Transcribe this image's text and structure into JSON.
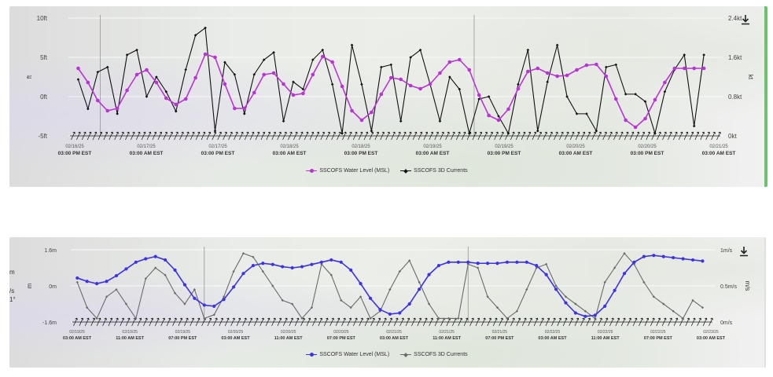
{
  "colors": {
    "level_top": "#b933d6",
    "level_bottom": "#3c32e6",
    "currents_top": "#111111",
    "currents_bottom": "#6a6a6a",
    "text": "#444444"
  },
  "icons": [
    "download-icon"
  ],
  "left_edge_text": [
    "m",
    "/s",
    "1°"
  ],
  "chart_data": [
    {
      "type": "line",
      "y_left_label": "ft",
      "y_right_label": "kt",
      "y_left_ticks": [
        "10ft",
        "5ft",
        "0ft",
        "-5ft"
      ],
      "y_right_ticks": [
        "2.4kt",
        "1.6kt",
        "0.8kt",
        "0kt"
      ],
      "ylim_left": [
        -5,
        10
      ],
      "ylim_right": [
        0,
        2.4
      ],
      "x_ticks": [
        {
          "date": "02/16/25",
          "time": "03:00 PM EST"
        },
        {
          "date": "02/17/25",
          "time": "03:00 AM EST"
        },
        {
          "date": "02/17/25",
          "time": "03:00 PM EST"
        },
        {
          "date": "02/18/25",
          "time": "03:00 AM EST"
        },
        {
          "date": "02/18/25",
          "time": "03:00 PM EST"
        },
        {
          "date": "02/19/25",
          "time": "03:00 AM EST"
        },
        {
          "date": "02/19/25",
          "time": "03:00 PM EST"
        },
        {
          "date": "02/20/25",
          "time": "03:00 AM EST"
        },
        {
          "date": "02/20/25",
          "time": "03:00 PM EST"
        },
        {
          "date": "02/21/25",
          "time": "03:00 AM EST"
        }
      ],
      "x_range_hours": [
        -2,
        132
      ],
      "grid_vertical_hours": [
        4.5,
        81
      ],
      "arrow_count": 120,
      "series": [
        {
          "name": "SSCOFS Water Level (MSL)",
          "y_axis": "left",
          "x_hours": [
            0,
            2,
            4,
            6,
            8,
            10,
            12,
            14,
            16,
            18,
            20,
            22,
            24,
            26,
            28,
            30,
            32,
            34,
            36,
            38,
            40,
            42,
            44,
            46,
            48,
            50,
            52,
            54,
            56,
            58,
            60,
            62,
            64,
            66,
            68,
            70,
            72,
            74,
            76,
            78,
            80,
            82,
            84,
            86,
            88,
            90,
            92,
            94,
            96,
            98,
            100,
            102,
            104,
            106,
            108,
            110,
            112,
            114,
            116,
            118,
            120,
            122,
            124,
            126,
            128
          ],
          "values": [
            3.6,
            1.8,
            -0.5,
            -1.8,
            -1.5,
            0.8,
            2.8,
            3.4,
            1.8,
            -0.2,
            -1.0,
            -0.3,
            2.4,
            5.4,
            5.0,
            1.6,
            -1.5,
            -1.5,
            0.5,
            2.8,
            3.0,
            1.6,
            0.2,
            0.4,
            2.8,
            5.1,
            4.4,
            1.3,
            -1.8,
            -3.0,
            -2.0,
            0.3,
            2.4,
            2.2,
            1.4,
            1.0,
            1.6,
            3.0,
            4.4,
            4.7,
            3.4,
            0.2,
            -2.4,
            -3.0,
            -1.6,
            1.0,
            3.2,
            3.6,
            3.0,
            2.6,
            2.7,
            3.4,
            4.0,
            4.1,
            2.6,
            -0.3,
            -3.0,
            -3.9,
            -2.8,
            -0.4,
            1.8,
            3.6,
            3.6,
            3.6,
            3.6
          ]
        },
        {
          "name": "SSCOFS 3D Currents",
          "y_axis": "right",
          "x_hours": [
            0,
            2,
            4,
            6,
            8,
            10,
            12,
            14,
            16,
            18,
            20,
            22,
            24,
            26,
            28,
            30,
            32,
            34,
            36,
            38,
            40,
            42,
            44,
            46,
            48,
            50,
            52,
            54,
            56,
            58,
            60,
            62,
            64,
            66,
            68,
            70,
            72,
            74,
            76,
            78,
            80,
            82,
            84,
            86,
            88,
            90,
            92,
            94,
            96,
            98,
            100,
            102,
            104,
            106,
            108,
            110,
            112,
            114,
            116,
            118,
            120,
            122,
            124,
            126,
            128
          ],
          "values": [
            1.15,
            0.55,
            1.3,
            1.4,
            0.45,
            1.65,
            1.75,
            0.8,
            1.2,
            0.9,
            0.5,
            1.35,
            2.05,
            2.2,
            0.1,
            1.5,
            1.25,
            0.45,
            1.25,
            1.55,
            1.7,
            0.3,
            1.1,
            0.95,
            1.55,
            1.75,
            1.05,
            0.05,
            1.85,
            1.05,
            0.1,
            1.4,
            1.45,
            0.3,
            1.6,
            1.75,
            1.05,
            0.3,
            1.2,
            0.95,
            0.05,
            0.75,
            0.8,
            0.4,
            0.05,
            1.05,
            1.75,
            0.1,
            1.1,
            1.85,
            0.8,
            0.45,
            0.45,
            0.1,
            1.4,
            1.45,
            0.85,
            0.85,
            0.7,
            0.05,
            0.9,
            1.35,
            1.65,
            0.2,
            1.65
          ]
        }
      ]
    },
    {
      "type": "line",
      "y_left_label": "m",
      "y_right_label": "m/s",
      "y_left_ticks": [
        "1.6m",
        "0m",
        "-1.6m"
      ],
      "y_right_ticks": [
        "1m/s",
        "0.5m/s",
        "0m/s"
      ],
      "ylim_left": [
        -1.6,
        1.6
      ],
      "ylim_right": [
        0,
        1
      ],
      "x_ticks": [
        {
          "date": "02/19/25",
          "time": "03:00 AM EST"
        },
        {
          "date": "02/19/25",
          "time": "11:00 AM EST"
        },
        {
          "date": "02/19/25",
          "time": "07:00 PM EST"
        },
        {
          "date": "02/20/25",
          "time": "03:00 AM EST"
        },
        {
          "date": "02/20/25",
          "time": "11:00 AM EST"
        },
        {
          "date": "02/20/25",
          "time": "07:00 PM EST"
        },
        {
          "date": "02/21/25",
          "time": "03:00 AM EST"
        },
        {
          "date": "02/21/25",
          "time": "11:00 AM EST"
        },
        {
          "date": "02/21/25",
          "time": "07:00 PM EST"
        },
        {
          "date": "02/22/25",
          "time": "03:00 AM EST"
        },
        {
          "date": "02/22/25",
          "time": "11:00 AM EST"
        },
        {
          "date": "02/22/25",
          "time": "07:00 PM EST"
        },
        {
          "date": "02/23/25",
          "time": "03:00 AM EST"
        }
      ],
      "x_range_hours": [
        -1,
        98
      ],
      "grid_vertical_hours": [
        19.5,
        60
      ],
      "arrow_count": 110,
      "series": [
        {
          "name": "SSCOFS Water Level (MSL)",
          "y_axis": "left",
          "x_hours": [
            0,
            1.5,
            3,
            4.5,
            6,
            7.5,
            9,
            10.5,
            12,
            13.5,
            15,
            16.5,
            18,
            19.5,
            21,
            22.5,
            24,
            25.5,
            27,
            28.5,
            30,
            31.5,
            33,
            34.5,
            36,
            37.5,
            39,
            40.5,
            42,
            43.5,
            45,
            46.5,
            48,
            49.5,
            51,
            52.5,
            54,
            55.5,
            57,
            58.5,
            60,
            61.5,
            63,
            64.5,
            66,
            67.5,
            69,
            70.5,
            72,
            73.5,
            75,
            76.5,
            78,
            79.5,
            81,
            82.5,
            84,
            85.5,
            87,
            88.5,
            90,
            91.5,
            93,
            94.5,
            96
          ],
          "values": [
            0.35,
            0.2,
            0.1,
            0.2,
            0.45,
            0.75,
            1.05,
            1.2,
            1.3,
            1.15,
            0.7,
            0.05,
            -0.55,
            -0.85,
            -0.9,
            -0.6,
            -0.05,
            0.55,
            0.9,
            1.0,
            0.95,
            0.85,
            0.8,
            0.85,
            0.95,
            1.05,
            1.15,
            1.05,
            0.7,
            0.1,
            -0.55,
            -1.05,
            -1.25,
            -1.2,
            -0.8,
            -0.15,
            0.5,
            0.9,
            1.05,
            1.05,
            1.05,
            1.0,
            1.0,
            1.0,
            1.05,
            1.05,
            1.05,
            0.9,
            0.5,
            -0.15,
            -0.75,
            -1.2,
            -1.35,
            -1.3,
            -0.9,
            -0.2,
            0.55,
            1.05,
            1.3,
            1.35,
            1.3,
            1.25,
            1.2,
            1.15,
            1.1
          ]
        },
        {
          "name": "SSCOFS 3D Currents",
          "y_axis": "right",
          "x_hours": [
            0,
            1.5,
            3,
            4.5,
            6,
            7.5,
            9,
            10.5,
            12,
            13.5,
            15,
            16.5,
            18,
            19.5,
            21,
            22.5,
            24,
            25.5,
            27,
            28.5,
            30,
            31.5,
            33,
            34.5,
            36,
            37.5,
            39,
            40.5,
            42,
            43.5,
            45,
            46.5,
            48,
            49.5,
            51,
            52.5,
            54,
            55.5,
            57,
            58.5,
            60,
            61.5,
            63,
            64.5,
            66,
            67.5,
            69,
            70.5,
            72,
            73.5,
            75,
            76.5,
            78,
            79.5,
            81,
            82.5,
            84,
            85.5,
            87,
            88.5,
            90,
            91.5,
            93,
            94.5,
            96
          ],
          "values": [
            0.55,
            0.2,
            0.05,
            0.35,
            0.45,
            0.25,
            0.05,
            0.6,
            0.75,
            0.65,
            0.4,
            0.25,
            0.45,
            0.05,
            0.1,
            0.35,
            0.7,
            0.95,
            0.9,
            0.7,
            0.5,
            0.3,
            0.25,
            0.05,
            0.2,
            0.8,
            0.65,
            0.3,
            0.2,
            0.35,
            0.05,
            0.15,
            0.45,
            0.7,
            0.85,
            0.55,
            0.25,
            0.05,
            0.05,
            0.05,
            0.8,
            0.75,
            0.35,
            0.2,
            0.05,
            0.15,
            0.45,
            0.75,
            0.8,
            0.5,
            0.35,
            0.25,
            0.15,
            0.05,
            0.55,
            0.75,
            0.95,
            0.8,
            0.55,
            0.35,
            0.25,
            0.15,
            0.05,
            0.3,
            0.2
          ]
        }
      ]
    }
  ]
}
